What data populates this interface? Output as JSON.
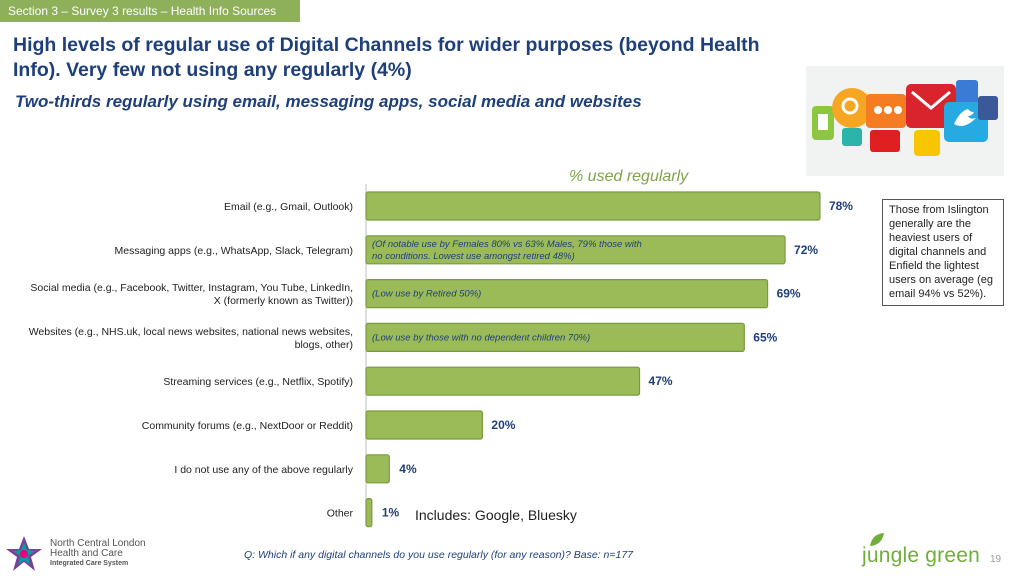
{
  "header": {
    "section_tag": "Section 3 – Survey 3 results – Health Info Sources",
    "title": "High levels of regular use of Digital Channels for wider purposes (beyond Health Info). Very few not using any regularly (4%)",
    "subtitle": "Two-thirds regularly using email, messaging apps, social media and websites"
  },
  "chart_data": {
    "type": "bar",
    "orientation": "horizontal",
    "title": "% used regularly",
    "categories": [
      [
        "Email (e.g., Gmail, Outlook)"
      ],
      [
        "Messaging apps (e.g., WhatsApp, Slack, Telegram)"
      ],
      [
        "Social media (e.g., Facebook, Twitter, Instagram, You Tube, LinkedIn,",
        "X (formerly known as Twitter))"
      ],
      [
        "Websites (e.g., NHS.uk, local news websites, national news websites,",
        "blogs, other)"
      ],
      [
        "Streaming services (e.g., Netflix, Spotify)"
      ],
      [
        "Community forums (e.g., NextDoor or Reddit)"
      ],
      [
        "I do not use any of the above regularly"
      ],
      [
        "Other"
      ]
    ],
    "values": [
      78,
      72,
      69,
      65,
      47,
      20,
      4,
      1
    ],
    "value_labels": [
      "78%",
      "72%",
      "69%",
      "65%",
      "47%",
      "20%",
      "4%",
      "1%"
    ],
    "bar_annotations": [
      [],
      [
        "(Of notable use by Females  80% vs 63% Males, 79% those with",
        "no conditions.  Lowest use amongst retired 48%)"
      ],
      [
        "(Low use by Retired 50%)"
      ],
      [
        "(Low use by those with no dependent children 70%)"
      ],
      [],
      [],
      [],
      []
    ],
    "xlim": [
      0,
      100
    ],
    "colors": {
      "bar": "#9bbb59",
      "bar_edge": "#7a9a3e",
      "value_label": "#1f3f7a",
      "annotation": "#1f3f7a"
    }
  },
  "notes": {
    "side_note": "Those from Islington generally are the heaviest users of digital channels and Enfield the lightest users on average (eg email 94% vs 52%).",
    "includes": "Includes: Google, Bluesky",
    "question": "Q: Which if any digital channels do you use regularly (for any reason)? Base: n=177"
  },
  "footer": {
    "org_line1": "North Central London",
    "org_line2": "Health and Care",
    "org_line3": "Integrated Care System",
    "brand": "jungle green",
    "page_number": "19"
  },
  "colors": {
    "accent_green": "#8fb05a",
    "title_blue": "#1f3f7a",
    "brand_green": "#6fae3a"
  }
}
